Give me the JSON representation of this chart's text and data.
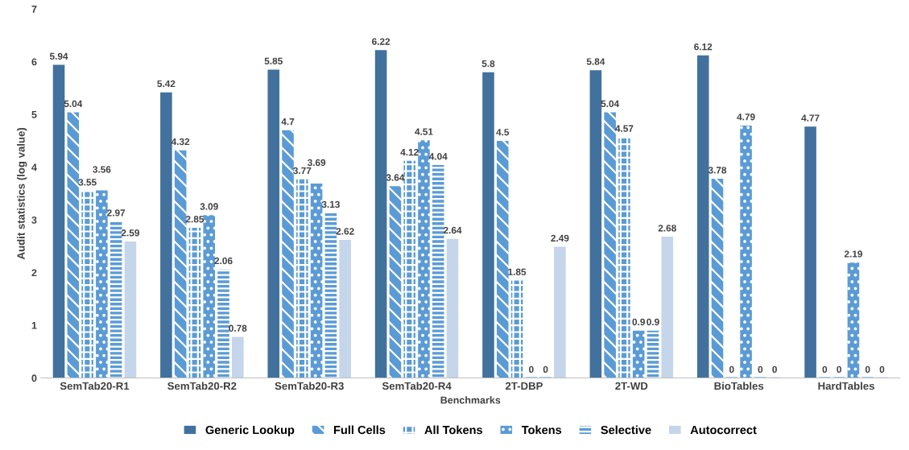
{
  "chart_data": {
    "type": "bar",
    "xlabel": "Benchmarks",
    "ylabel": "Audit statistics (log value)",
    "categories": [
      "SemTab20-R1",
      "SemTab20-R2",
      "SemTab20-R3",
      "SemTab20-R4",
      "2T-DBP",
      "2T-WD",
      "BioTables",
      "HardTables"
    ],
    "series": [
      {
        "name": "Generic Lookup",
        "color": "#41719c",
        "values": [
          5.94,
          5.42,
          5.85,
          6.22,
          5.8,
          5.84,
          6.12,
          4.77
        ]
      },
      {
        "name": "Full Cells",
        "color": "#5b9bd5",
        "values": [
          5.04,
          4.32,
          4.7,
          3.64,
          4.5,
          5.04,
          3.78,
          0
        ]
      },
      {
        "name": "All Tokens",
        "color": "#5b9bd5",
        "values": [
          3.55,
          2.85,
          3.77,
          4.12,
          1.85,
          4.57,
          0,
          0
        ]
      },
      {
        "name": "Tokens",
        "color": "#5b9bd5",
        "values": [
          3.56,
          3.09,
          3.69,
          4.51,
          0,
          0.9,
          4.79,
          2.19
        ]
      },
      {
        "name": "Selective",
        "color": "#5b9bd5",
        "values": [
          2.97,
          2.06,
          3.13,
          4.04,
          0,
          0.9,
          0,
          0
        ]
      },
      {
        "name": "Autocorrect",
        "color": "#c5d5ea",
        "values": [
          2.59,
          0.78,
          2.62,
          2.64,
          2.49,
          2.68,
          0,
          0
        ]
      }
    ],
    "ylim": [
      0,
      7
    ],
    "yticks": [
      0,
      1,
      2,
      3,
      4,
      5,
      6,
      7
    ],
    "data_labels": true,
    "legend": "bottom",
    "grid": false
  }
}
